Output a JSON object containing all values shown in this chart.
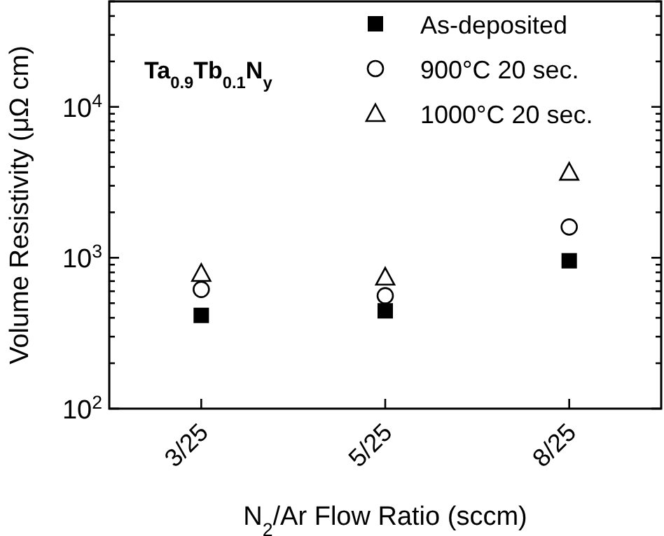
{
  "chart_data": {
    "type": "scatter",
    "ylabel": "Volume Resistivity (μΩ cm)",
    "xlabel": "N$_{2}$/Ar Flow Ratio (sccm)",
    "annotations": [
      "Ta$_{0.9}$Tb$_{0.1}$N$_{y}$"
    ],
    "categories": [
      "3/25",
      "5/25",
      "8/25"
    ],
    "log": "y",
    "ylim": [
      100,
      50000
    ],
    "yticks": [
      {
        "value": 100,
        "label": "10$^{2}$"
      },
      {
        "value": 200,
        "label": null
      },
      {
        "value": 300,
        "label": null
      },
      {
        "value": 400,
        "label": null
      },
      {
        "value": 500,
        "label": null
      },
      {
        "value": 600,
        "label": null
      },
      {
        "value": 700,
        "label": null
      },
      {
        "value": 800,
        "label": null
      },
      {
        "value": 900,
        "label": null
      },
      {
        "value": 1000,
        "label": "10$^{3}$"
      },
      {
        "value": 2000,
        "label": null
      },
      {
        "value": 3000,
        "label": null
      },
      {
        "value": 4000,
        "label": null
      },
      {
        "value": 5000,
        "label": null
      },
      {
        "value": 6000,
        "label": null
      },
      {
        "value": 7000,
        "label": null
      },
      {
        "value": 8000,
        "label": null
      },
      {
        "value": 9000,
        "label": null
      },
      {
        "value": 10000,
        "label": "10$^{4}$"
      },
      {
        "value": 20000,
        "label": null
      },
      {
        "value": 30000,
        "label": null
      },
      {
        "value": 40000,
        "label": null
      },
      {
        "value": 50000,
        "label": null
      }
    ],
    "legend": "top right",
    "grid": false,
    "series": [
      {
        "name": "As-deposited",
        "color": "#000000",
        "marker": "square",
        "values": [
          415,
          445,
          955
        ]
      },
      {
        "name": "900°C 20 sec.",
        "color": "#000000",
        "marker": "circle",
        "values": [
          617,
          560,
          1600
        ]
      },
      {
        "name": "1000°C 20 sec.",
        "color": "#000000",
        "marker": "triangle",
        "values": [
          790,
          746,
          3700
        ]
      }
    ]
  }
}
